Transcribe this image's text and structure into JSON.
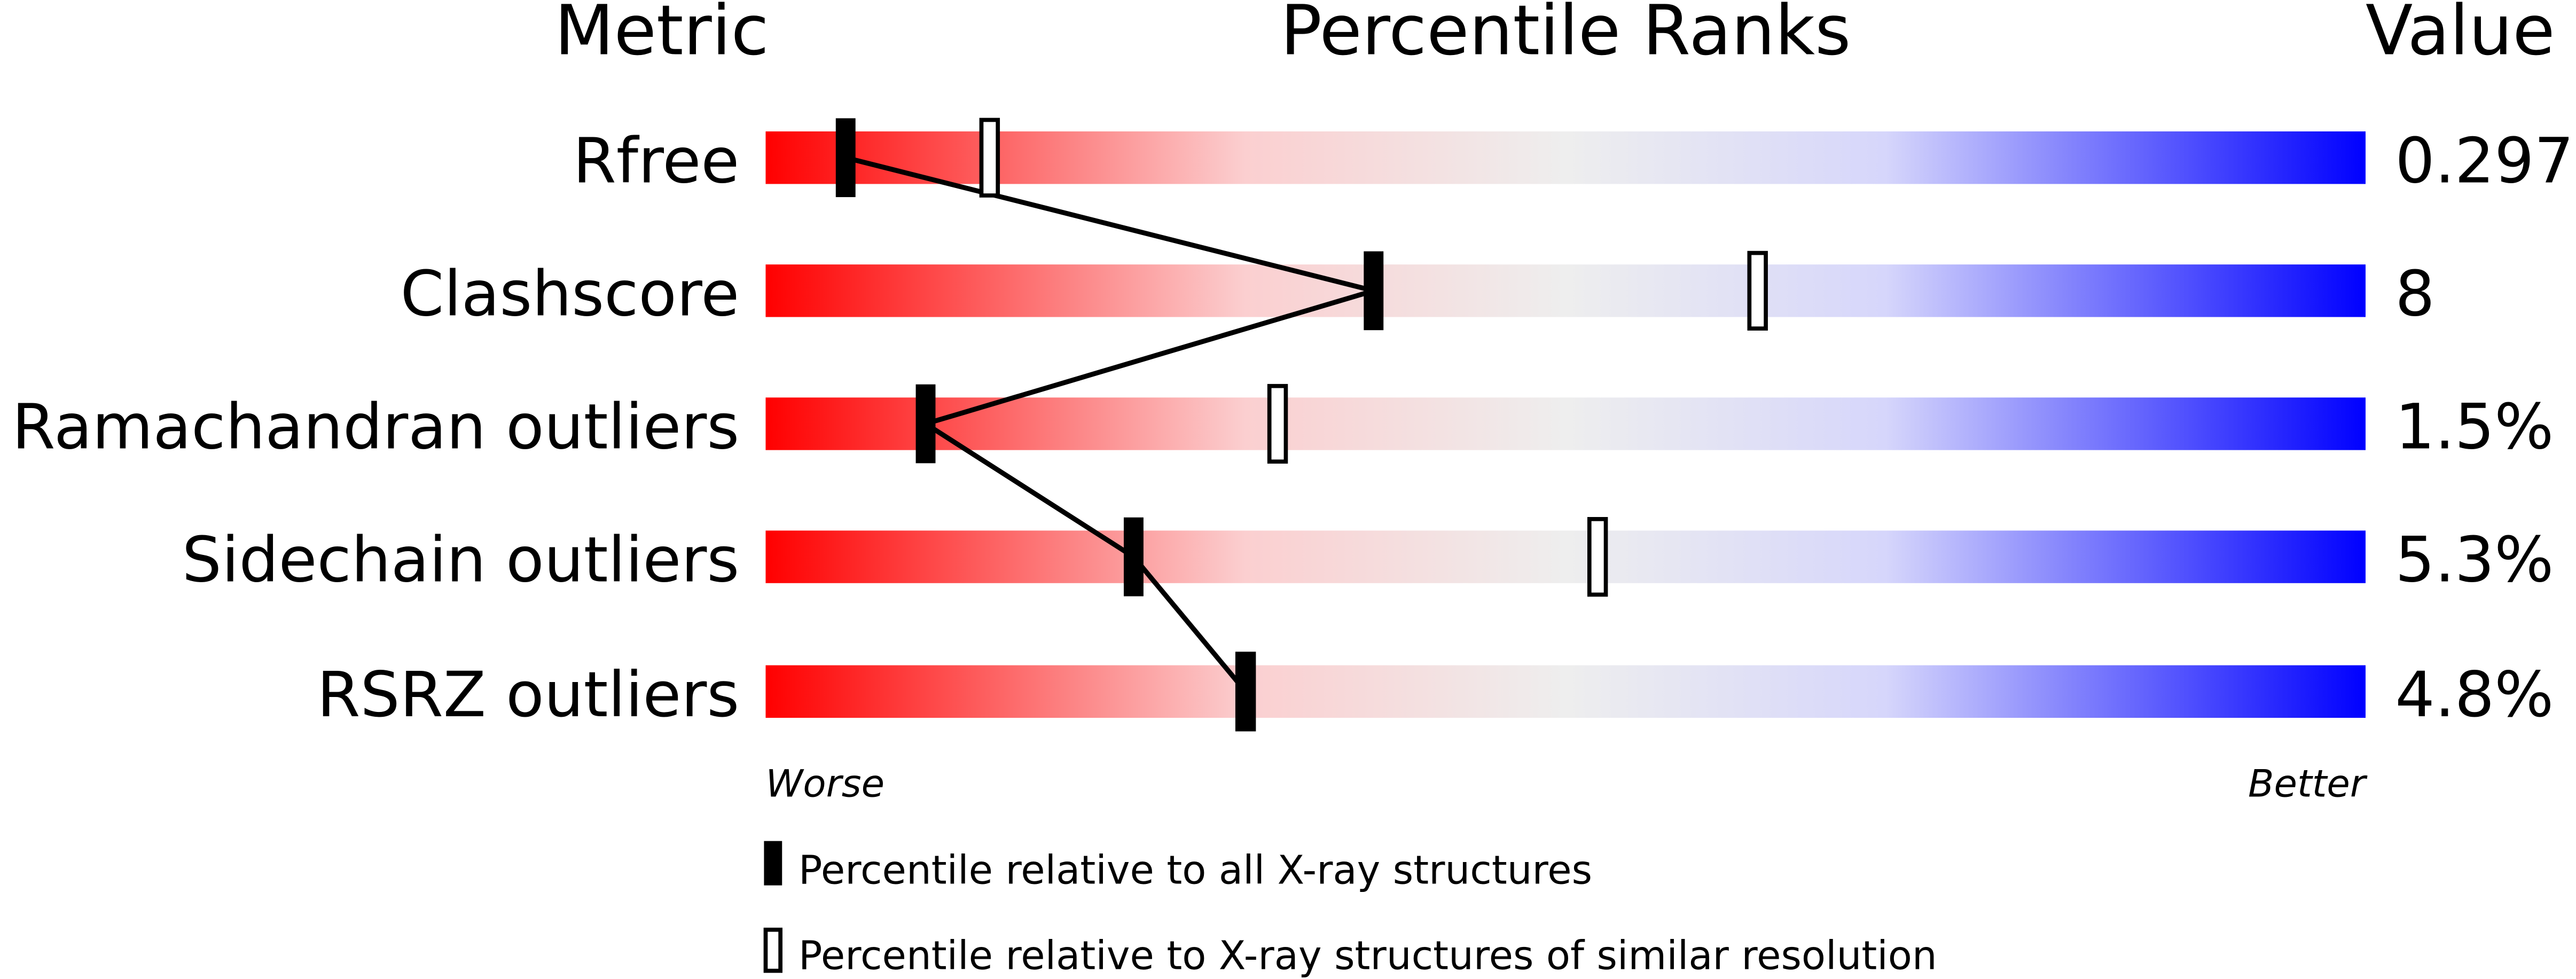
{
  "chart_data": {
    "type": "percentile-slider",
    "headers": {
      "metric": "Metric",
      "ranks": "Percentile Ranks",
      "value": "Value"
    },
    "axis": {
      "left_label": "Worse",
      "right_label": "Better",
      "range": [
        0,
        100
      ]
    },
    "colors": {
      "worse": "#ff0000",
      "middle": "#eeeeee",
      "better": "#0000ff"
    },
    "rows": [
      {
        "metric": "Rfree",
        "value": "0.297",
        "percentile_all": 5,
        "percentile_similar": 14
      },
      {
        "metric": "Clashscore",
        "value": "8",
        "percentile_all": 38,
        "percentile_similar": 62
      },
      {
        "metric": "Ramachandran outliers",
        "value": "1.5%",
        "percentile_all": 10,
        "percentile_similar": 32
      },
      {
        "metric": "Sidechain outliers",
        "value": "5.3%",
        "percentile_all": 23,
        "percentile_similar": 52
      },
      {
        "metric": "RSRZ outliers",
        "value": "4.8%",
        "percentile_all": 30,
        "percentile_similar": 30
      }
    ],
    "legend": [
      {
        "marker": "filled",
        "label": "Percentile relative to all X-ray structures"
      },
      {
        "marker": "open",
        "label": "Percentile relative to X-ray structures of similar resolution"
      }
    ]
  }
}
